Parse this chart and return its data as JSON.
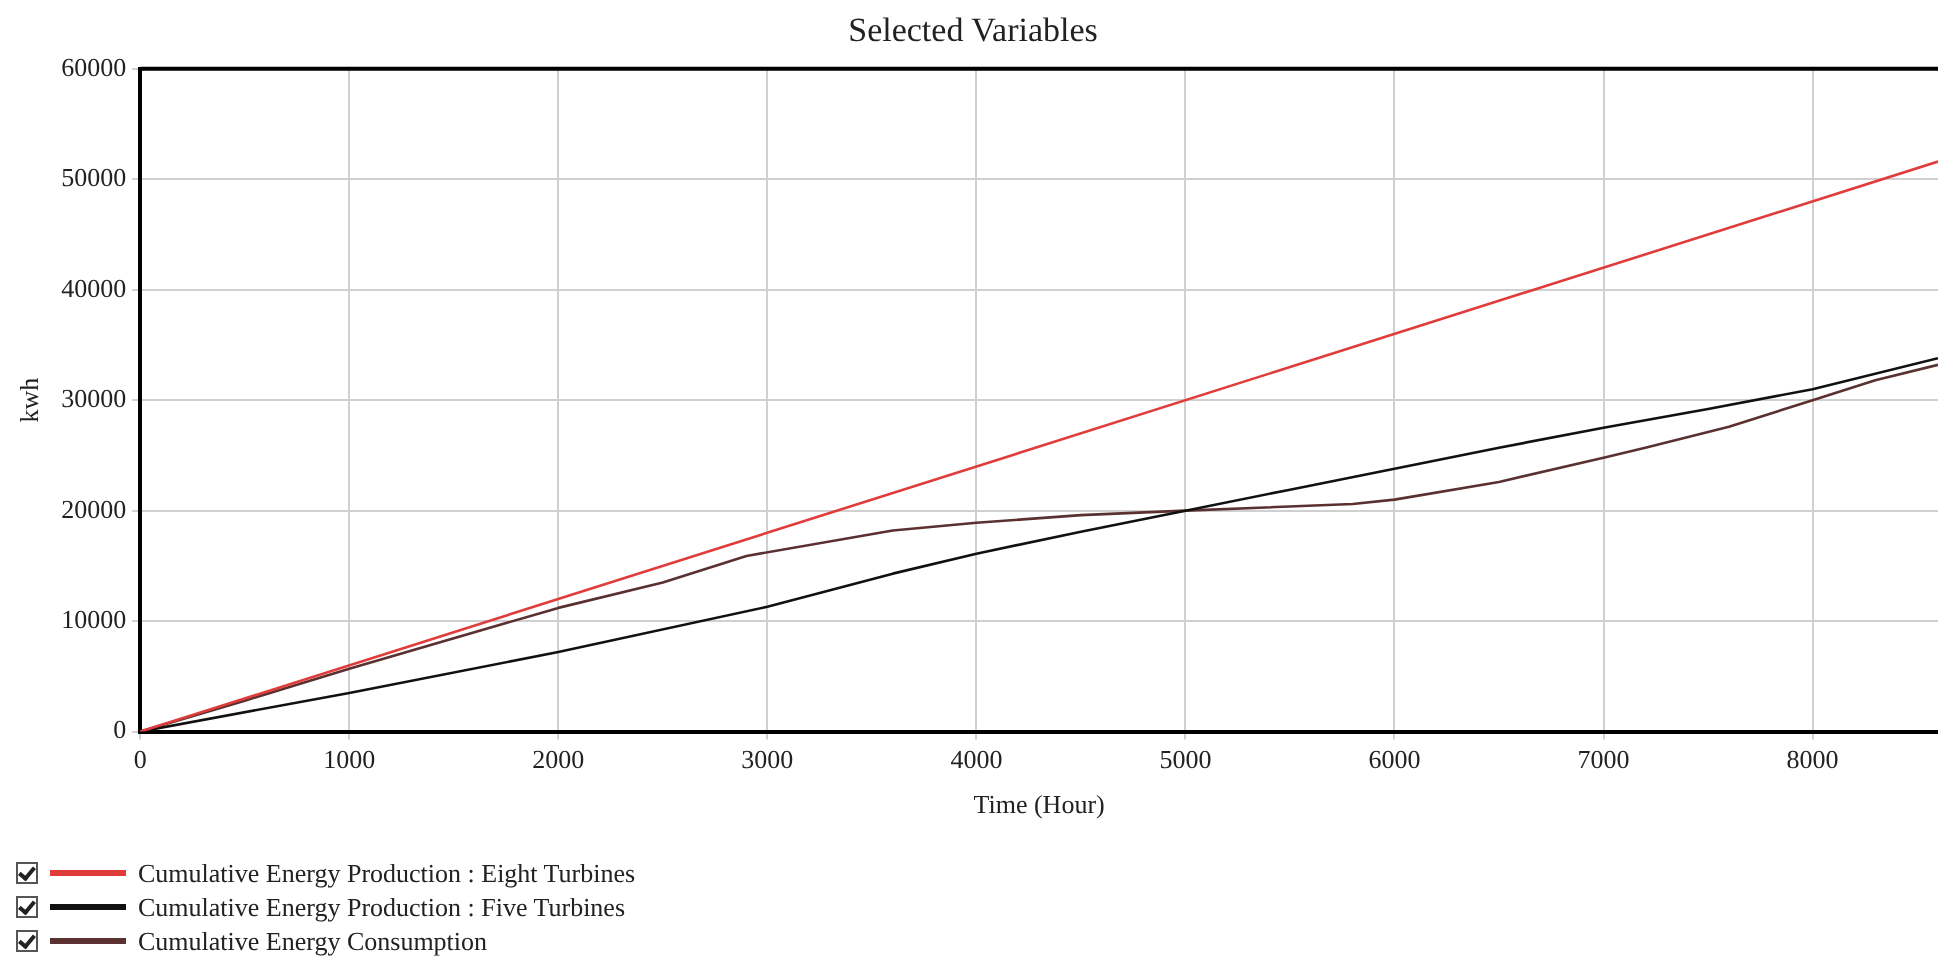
{
  "chart_data": {
    "type": "line",
    "title": "Selected Variables",
    "xlabel": "Time (Hour)",
    "ylabel": "kwh",
    "xlim": [
      0,
      8600
    ],
    "xticks": [
      0,
      1000,
      2000,
      3000,
      4000,
      5000,
      6000,
      7000,
      8000
    ],
    "ylim": [
      0,
      60000
    ],
    "yticks": [
      0,
      10000,
      20000,
      30000,
      40000,
      50000,
      60000
    ],
    "grid": true,
    "legend": "bottom left",
    "marker": "none",
    "series": [
      {
        "name": "Cumulative Energy Production : Eight Turbines",
        "color": "#e03c3c",
        "x": [
          0,
          8600
        ],
        "values": [
          0,
          51600
        ]
      },
      {
        "name": "Cumulative Energy Production : Five Turbines",
        "color": "#111111",
        "x": [
          0,
          1000,
          2000,
          3000,
          3600,
          4000,
          4500,
          5000,
          5500,
          6000,
          6500,
          7000,
          7500,
          8000,
          8600
        ],
        "values": [
          0,
          3500,
          7200,
          11300,
          14300,
          16100,
          18100,
          20000,
          21900,
          23800,
          25700,
          27500,
          29200,
          31000,
          33800
        ]
      },
      {
        "name": "Cumulative Energy Consumption",
        "color": "#5a3030",
        "x": [
          0,
          500,
          1000,
          2000,
          2500,
          2900,
          3600,
          4000,
          4500,
          5000,
          5800,
          6000,
          6500,
          7000,
          7200,
          7600,
          8000,
          8300,
          8600
        ],
        "values": [
          0,
          2800,
          5700,
          11200,
          13500,
          15900,
          18200,
          18900,
          19600,
          20000,
          20600,
          21000,
          22600,
          24800,
          25700,
          27600,
          30000,
          31800,
          33200
        ]
      }
    ]
  }
}
